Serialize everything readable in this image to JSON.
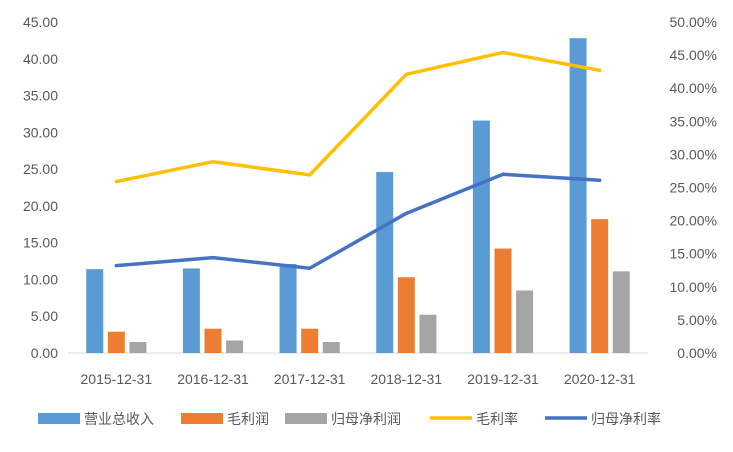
{
  "chart_data": {
    "type": "bar",
    "categories": [
      "2015-12-31",
      "2016-12-31",
      "2017-12-31",
      "2018-12-31",
      "2019-12-31",
      "2020-12-31"
    ],
    "series": [
      {
        "name": "营业总收入",
        "kind": "bar",
        "axis": "left",
        "color": "#5B9BD5",
        "values": [
          11.4,
          11.5,
          12.1,
          24.6,
          31.6,
          42.8
        ]
      },
      {
        "name": "毛利润",
        "kind": "bar",
        "axis": "left",
        "color": "#ED7D31",
        "values": [
          2.9,
          3.3,
          3.3,
          10.3,
          14.2,
          18.2
        ]
      },
      {
        "name": "归母净利润",
        "kind": "bar",
        "axis": "left",
        "color": "#A5A5A5",
        "values": [
          1.5,
          1.7,
          1.5,
          5.2,
          8.5,
          11.1
        ]
      },
      {
        "name": "毛利率",
        "kind": "line",
        "axis": "right",
        "color": "#FFC000",
        "values": [
          0.259,
          0.289,
          0.269,
          0.421,
          0.454,
          0.427
        ]
      },
      {
        "name": "归母净利率",
        "kind": "line",
        "axis": "right",
        "color": "#4472C4",
        "values": [
          0.132,
          0.144,
          0.128,
          0.211,
          0.27,
          0.261
        ]
      }
    ],
    "left_axis": {
      "ylim": [
        0,
        45
      ],
      "ticks": [
        "0.00",
        "5.00",
        "10.00",
        "15.00",
        "20.00",
        "25.00",
        "30.00",
        "35.00",
        "40.00",
        "45.00"
      ]
    },
    "right_axis": {
      "ylim": [
        0,
        0.5
      ],
      "ticks": [
        "0.00%",
        "5.00%",
        "10.00%",
        "15.00%",
        "20.00%",
        "25.00%",
        "30.00%",
        "35.00%",
        "40.00%",
        "45.00%",
        "50.00%"
      ]
    },
    "grid": false,
    "legend": "bottom"
  }
}
